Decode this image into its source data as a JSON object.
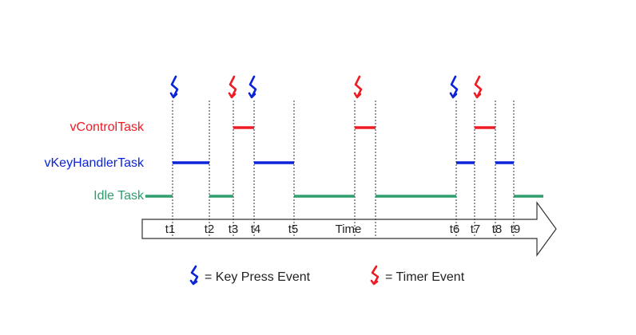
{
  "colors": {
    "control": "#ee1c25",
    "keyhandler": "#0b24d8",
    "idle": "#2e9e6e",
    "guide": "#333333",
    "arrow_outline": "#333333"
  },
  "tasks": {
    "control": "vControlTask",
    "keyhandler": "vKeyHandlerTask",
    "idle": "Idle Task"
  },
  "time_axis": {
    "labels": [
      "t1",
      "t2",
      "t3",
      "t4",
      "t5",
      "Time",
      "t6",
      "t7",
      "t8",
      "t9"
    ]
  },
  "events": [
    {
      "kind": "key",
      "at": "t1"
    },
    {
      "kind": "timer",
      "at": "t3"
    },
    {
      "kind": "key",
      "at": "t4"
    },
    {
      "kind": "timer",
      "at": "Time"
    },
    {
      "kind": "key",
      "at": "t6"
    },
    {
      "kind": "timer",
      "at": "t7"
    }
  ],
  "legend": {
    "key_press": "= Key Press Event",
    "timer": "= Timer Event",
    "key_icon": "key-press-event-icon",
    "timer_icon": "timer-event-icon"
  }
}
